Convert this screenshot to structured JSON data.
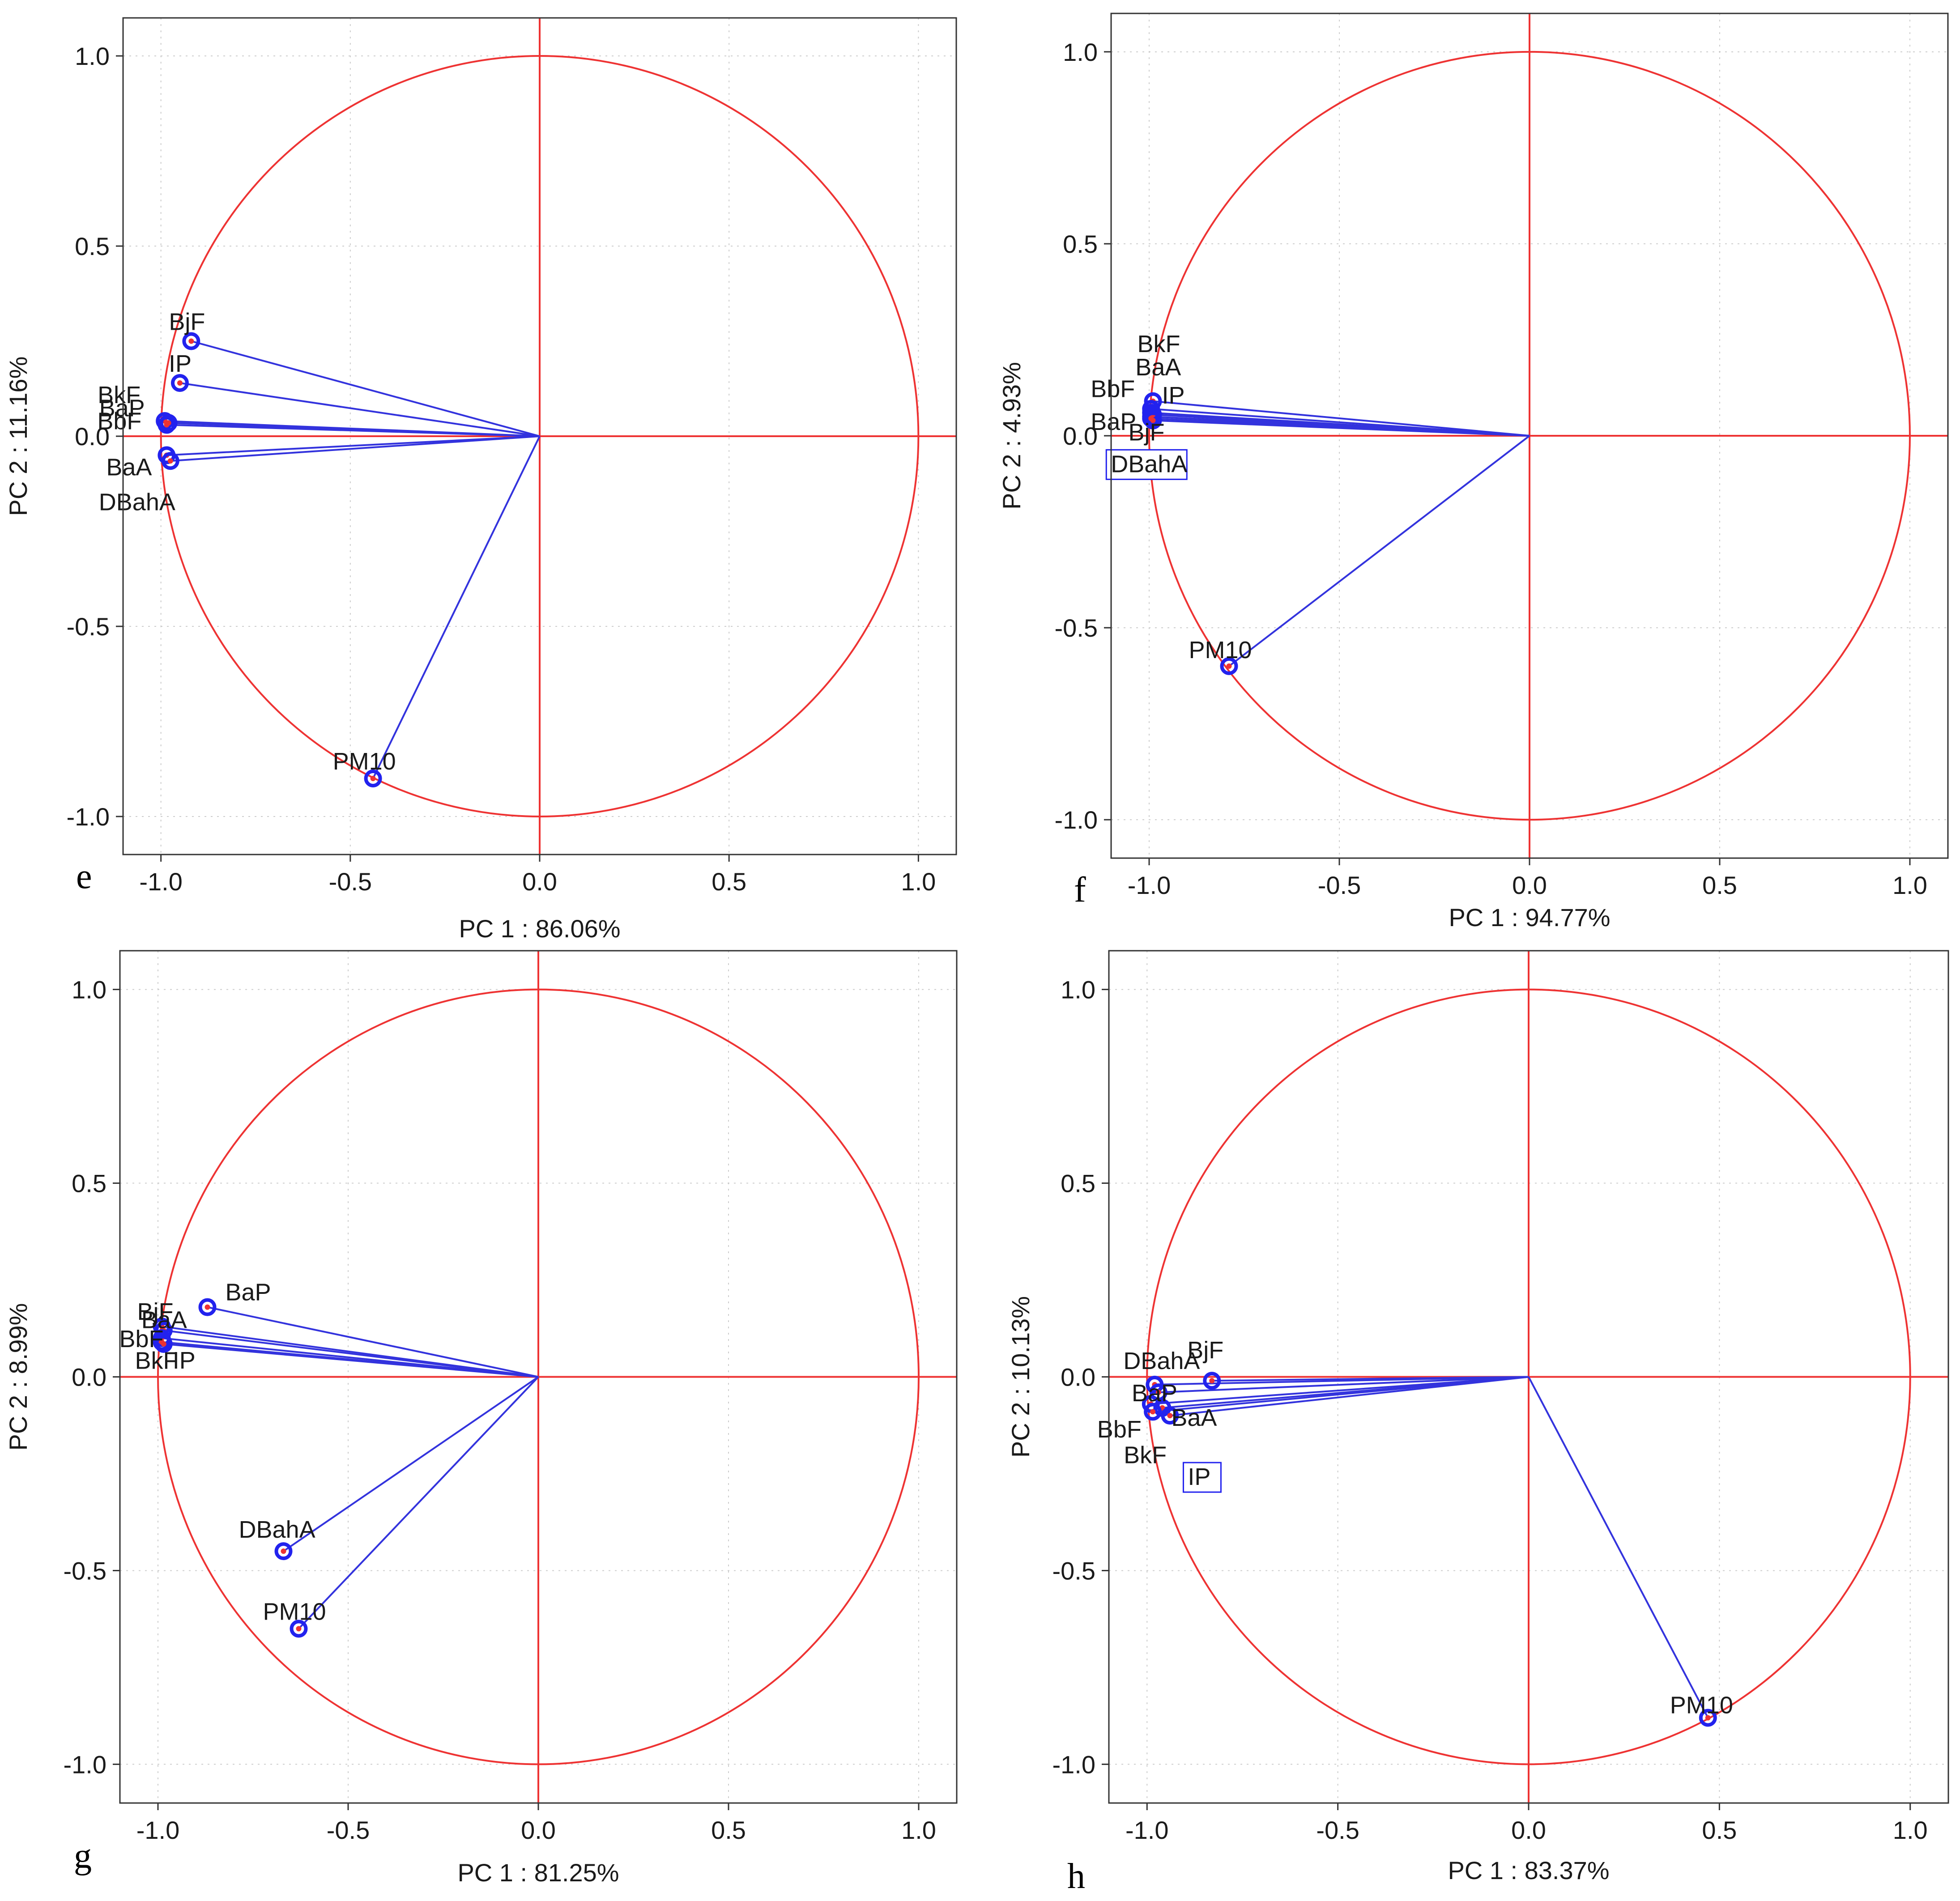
{
  "figure": {
    "colors": {
      "circle": "#ee3333",
      "axes": "#ee3333",
      "vector": "#3333dd",
      "marker_edge": "#2222ee",
      "marker_fill": "#ee3333",
      "frame": "#333333",
      "grid": "#cccccc"
    },
    "panels": [
      {
        "letter": "e",
        "xlabel": "PC 1 : 86.06%",
        "ylabel": "PC 2 : 11.16%"
      },
      {
        "letter": "f",
        "xlabel": "PC 1 : 94.77%",
        "ylabel": "PC 2 :  4.93%"
      },
      {
        "letter": "g",
        "xlabel": "PC 1 : 81.25%",
        "ylabel": "PC 2 :  8.99%"
      },
      {
        "letter": "h",
        "xlabel": "PC 1 : 83.37%",
        "ylabel": "PC 2 : 10.13%"
      }
    ]
  },
  "chart_data": [
    {
      "type": "scatter",
      "subtype": "pca-correlation-circle",
      "panel": "e",
      "xlabel": "PC 1 : 86.06%",
      "ylabel": "PC 2 : 11.16%",
      "xlim": [
        -1.1,
        1.1
      ],
      "ylim": [
        -1.1,
        1.1
      ],
      "xticks": [
        "-1.0",
        "-0.5",
        "0.0",
        "0.5",
        "1.0"
      ],
      "yticks": [
        "-1.0",
        "-0.5",
        "0.0",
        "0.5",
        "1.0"
      ],
      "grid": true,
      "points": [
        {
          "name": "BjF",
          "x": -0.92,
          "y": 0.25
        },
        {
          "name": "IP",
          "x": -0.95,
          "y": 0.14
        },
        {
          "name": "BkF",
          "x": -0.99,
          "y": 0.04
        },
        {
          "name": "BaP",
          "x": -0.98,
          "y": 0.035
        },
        {
          "name": "BbF",
          "x": -0.985,
          "y": 0.03
        },
        {
          "name": "BaA",
          "x": -0.985,
          "y": -0.05
        },
        {
          "name": "DBahA",
          "x": -0.975,
          "y": -0.065
        },
        {
          "name": "PM10",
          "x": -0.44,
          "y": -0.9
        }
      ]
    },
    {
      "type": "scatter",
      "subtype": "pca-correlation-circle",
      "panel": "f",
      "xlabel": "PC 1 : 94.77%",
      "ylabel": "PC 2 :  4.93%",
      "xlim": [
        -1.1,
        1.1
      ],
      "ylim": [
        -1.1,
        1.1
      ],
      "xticks": [
        "-1.0",
        "-0.5",
        "0.0",
        "0.5",
        "1.0"
      ],
      "yticks": [
        "-1.0",
        "-0.5",
        "0.0",
        "0.5",
        "1.0"
      ],
      "grid": true,
      "points": [
        {
          "name": "BkF",
          "x": -0.99,
          "y": 0.09
        },
        {
          "name": "BaA",
          "x": -0.995,
          "y": 0.07
        },
        {
          "name": "BbF",
          "x": -0.995,
          "y": 0.06
        },
        {
          "name": "IP",
          "x": -0.99,
          "y": 0.055
        },
        {
          "name": "BaP",
          "x": -0.995,
          "y": 0.05
        },
        {
          "name": "BjF",
          "x": -0.99,
          "y": 0.04
        },
        {
          "name": "DBahA",
          "x": -0.995,
          "y": 0.045
        },
        {
          "name": "PM10",
          "x": -0.79,
          "y": -0.6
        }
      ]
    },
    {
      "type": "scatter",
      "subtype": "pca-correlation-circle",
      "panel": "g",
      "xlabel": "PC 1 : 81.25%",
      "ylabel": "PC 2 :  8.99%",
      "xlim": [
        -1.1,
        1.1
      ],
      "ylim": [
        -1.1,
        1.1
      ],
      "xticks": [
        "-1.0",
        "-0.5",
        "0.0",
        "0.5",
        "1.0"
      ],
      "yticks": [
        "-1.0",
        "-0.5",
        "0.0",
        "0.5",
        "1.0"
      ],
      "grid": true,
      "points": [
        {
          "name": "BaP",
          "x": -0.87,
          "y": 0.18
        },
        {
          "name": "BjF",
          "x": -0.99,
          "y": 0.13
        },
        {
          "name": "BaA",
          "x": -0.985,
          "y": 0.12
        },
        {
          "name": "BbF",
          "x": -0.99,
          "y": 0.1
        },
        {
          "name": "BkF",
          "x": -0.99,
          "y": 0.09
        },
        {
          "name": "IP",
          "x": -0.985,
          "y": 0.085
        },
        {
          "name": "DBahA",
          "x": -0.67,
          "y": -0.45
        },
        {
          "name": "PM10",
          "x": -0.63,
          "y": -0.65
        }
      ]
    },
    {
      "type": "scatter",
      "subtype": "pca-correlation-circle",
      "panel": "h",
      "xlabel": "PC 1 : 83.37%",
      "ylabel": "PC 2 : 10.13%",
      "xlim": [
        -1.1,
        1.1
      ],
      "ylim": [
        -1.1,
        1.1
      ],
      "xticks": [
        "-1.0",
        "-0.5",
        "0.0",
        "0.5",
        "1.0"
      ],
      "yticks": [
        "-1.0",
        "-0.5",
        "0.0",
        "0.5",
        "1.0"
      ],
      "grid": true,
      "points": [
        {
          "name": "BjF",
          "x": -0.83,
          "y": -0.01
        },
        {
          "name": "DBahA",
          "x": -0.98,
          "y": -0.02
        },
        {
          "name": "BaP",
          "x": -0.97,
          "y": -0.04
        },
        {
          "name": "BaA",
          "x": -0.96,
          "y": -0.08
        },
        {
          "name": "BbF",
          "x": -0.99,
          "y": -0.07
        },
        {
          "name": "BkF",
          "x": -0.985,
          "y": -0.09
        },
        {
          "name": "IP",
          "x": -0.94,
          "y": -0.1
        },
        {
          "name": "PM10",
          "x": 0.47,
          "y": -0.88
        }
      ]
    }
  ]
}
